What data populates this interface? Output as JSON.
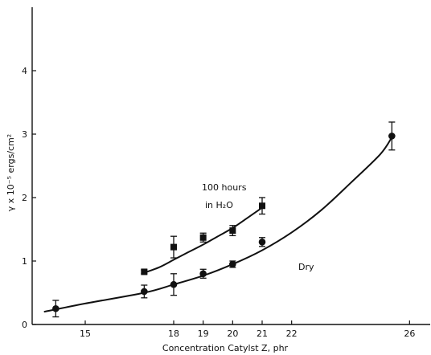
{
  "chart_data": {
    "type": "scatter",
    "xlabel": "Concentration Catylst Z, phr",
    "ylabel": "γ x 10⁻⁵ ergs/cm²",
    "xlim": [
      13.2,
      26.7
    ],
    "ylim": [
      0,
      5.0
    ],
    "x_ticks": [
      15,
      18,
      19,
      20,
      21,
      22,
      26
    ],
    "y_ticks": [
      0,
      1,
      2,
      3,
      4
    ],
    "grid": false,
    "series": [
      {
        "name": "Dry",
        "marker": "circle",
        "points": [
          {
            "x": 14.0,
            "y": 0.25,
            "err": 0.13
          },
          {
            "x": 17.0,
            "y": 0.52,
            "err": 0.1
          },
          {
            "x": 18.0,
            "y": 0.63,
            "err": 0.17
          },
          {
            "x": 19.0,
            "y": 0.8,
            "err": 0.07
          },
          {
            "x": 20.0,
            "y": 0.95,
            "err": 0.05
          },
          {
            "x": 21.0,
            "y": 1.3,
            "err": 0.07
          },
          {
            "x": 25.4,
            "y": 2.97,
            "err": 0.22
          }
        ],
        "curve": [
          [
            13.6,
            0.2
          ],
          [
            15,
            0.33
          ],
          [
            17,
            0.5
          ],
          [
            18,
            0.63
          ],
          [
            19,
            0.77
          ],
          [
            20,
            0.95
          ],
          [
            21,
            1.17
          ],
          [
            22,
            1.45
          ],
          [
            23,
            1.8
          ],
          [
            24,
            2.23
          ],
          [
            25,
            2.68
          ],
          [
            25.4,
            2.95
          ]
        ]
      },
      {
        "name": "100 hours in H2O",
        "marker": "square",
        "points": [
          {
            "x": 17.0,
            "y": 0.83,
            "err": 0.03
          },
          {
            "x": 18.0,
            "y": 1.22,
            "err": 0.17
          },
          {
            "x": 19.0,
            "y": 1.37,
            "err": 0.07
          },
          {
            "x": 20.0,
            "y": 1.48,
            "err": 0.08
          },
          {
            "x": 21.0,
            "y": 1.87,
            "err": 0.13
          }
        ],
        "curve": [
          [
            16.9,
            0.8
          ],
          [
            17.5,
            0.9
          ],
          [
            18,
            1.02
          ],
          [
            18.5,
            1.14
          ],
          [
            19,
            1.26
          ],
          [
            19.5,
            1.39
          ],
          [
            20,
            1.52
          ],
          [
            20.5,
            1.68
          ],
          [
            21,
            1.84
          ]
        ]
      }
    ],
    "annotations": {
      "wet_line1": "100 hours",
      "wet_line2": "in H₂O",
      "dry": "Dry"
    }
  }
}
